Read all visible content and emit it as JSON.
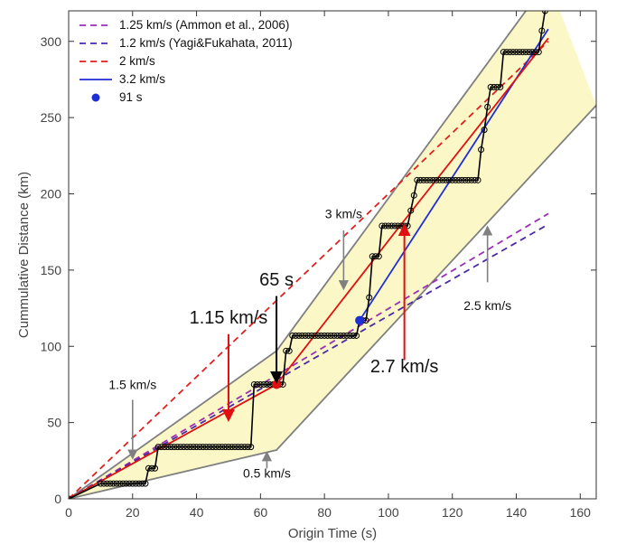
{
  "chart_data": {
    "type": "line",
    "title": "",
    "xlabel": "Origin Time (s)",
    "ylabel": "Cummulative Distance (km)",
    "xlim": [
      0,
      165
    ],
    "ylim": [
      0,
      320
    ],
    "xticks": [
      0,
      20,
      40,
      60,
      80,
      100,
      120,
      140,
      160
    ],
    "yticks": [
      0,
      50,
      100,
      150,
      200,
      250,
      300
    ],
    "grid": false,
    "legend_position": "top-left",
    "shaded_band": {
      "fill": "#fbf7c6",
      "edge": "#808080",
      "upper": [
        [
          0,
          0
        ],
        [
          65,
          97
        ],
        [
          150,
          340
        ]
      ],
      "lower": [
        [
          0,
          0
        ],
        [
          65,
          32
        ],
        [
          165,
          258
        ]
      ]
    },
    "series": [
      {
        "name": "1.25 km/s (Ammon et al., 2006)",
        "style": "dashed",
        "color": "#9a2fb4",
        "x": [
          0,
          150
        ],
        "y": [
          0,
          187
        ]
      },
      {
        "name": "1.2 km/s (Yagi&Fukahata, 2011)",
        "style": "dashed",
        "color": "#4a2aa6",
        "x": [
          0,
          150
        ],
        "y": [
          0,
          180
        ]
      },
      {
        "name": "2 km/s",
        "style": "dashed",
        "color": "#e02020",
        "x": [
          0,
          150
        ],
        "y": [
          0,
          300
        ]
      },
      {
        "name": "3.2 km/s",
        "style": "solid",
        "color": "#1f2fd6",
        "x": [
          91,
          150
        ],
        "y": [
          117,
          308
        ]
      },
      {
        "name": "",
        "style": "solid",
        "color": "#e01010",
        "x": [
          0,
          65,
          104,
          150
        ],
        "y": [
          0,
          75,
          180,
          302
        ]
      },
      {
        "name": "",
        "style": "step-markers",
        "color": "#000000",
        "x": [
          0,
          10,
          11,
          12,
          13,
          14,
          15,
          16,
          17,
          18,
          19,
          20,
          21,
          22,
          23,
          24,
          25,
          26,
          27,
          28,
          29,
          30,
          31,
          32,
          33,
          34,
          35,
          36,
          37,
          38,
          39,
          40,
          41,
          42,
          43,
          44,
          45,
          46,
          47,
          48,
          49,
          50,
          51,
          52,
          53,
          54,
          55,
          56,
          57,
          58,
          59,
          60,
          61,
          62,
          63,
          64,
          65,
          66,
          67,
          68,
          69,
          70,
          71,
          72,
          73,
          74,
          75,
          76,
          77,
          78,
          79,
          80,
          81,
          82,
          83,
          84,
          85,
          86,
          87,
          88,
          89,
          90,
          91,
          92,
          93,
          94,
          95,
          96,
          97,
          98,
          99,
          100,
          101,
          102,
          103,
          104,
          105,
          106,
          107,
          108,
          109,
          110,
          111,
          112,
          113,
          114,
          115,
          116,
          117,
          118,
          119,
          120,
          121,
          122,
          123,
          124,
          125,
          126,
          127,
          128,
          129,
          130,
          131,
          132,
          133,
          134,
          135,
          136,
          137,
          138,
          139,
          140,
          141,
          142,
          143,
          144,
          145,
          146,
          147,
          148,
          149
        ],
        "y": [
          0,
          10,
          10,
          10,
          10,
          10,
          10,
          10,
          10,
          10,
          10,
          10,
          10,
          10,
          10,
          10,
          20,
          20,
          20,
          34,
          34,
          34,
          34,
          34,
          34,
          34,
          34,
          34,
          34,
          34,
          34,
          34,
          34,
          34,
          34,
          34,
          34,
          34,
          34,
          34,
          34,
          34,
          34,
          34,
          34,
          34,
          34,
          34,
          34,
          75,
          75,
          75,
          75,
          75,
          75,
          75,
          75,
          75,
          75,
          97,
          97,
          107,
          107,
          107,
          107,
          107,
          107,
          107,
          107,
          107,
          107,
          107,
          107,
          107,
          107,
          107,
          107,
          107,
          107,
          107,
          107,
          107,
          117,
          117,
          117,
          132,
          159,
          159,
          159,
          179,
          179,
          179,
          179,
          179,
          179,
          179,
          179,
          179,
          189,
          199,
          209,
          209,
          209,
          209,
          209,
          209,
          209,
          209,
          209,
          209,
          209,
          209,
          209,
          209,
          209,
          209,
          209,
          209,
          209,
          209,
          229,
          242,
          257,
          270,
          270,
          270,
          270,
          293,
          293,
          293,
          293,
          293,
          293,
          293,
          293,
          293,
          293,
          293,
          293,
          307,
          320
        ]
      }
    ],
    "points": [
      {
        "name": "91 s",
        "x": 91,
        "y": 117,
        "color": "#1f2fd6",
        "in_legend": true
      },
      {
        "name": "",
        "x": 65,
        "y": 75,
        "color": "#e01010",
        "in_legend": false
      }
    ],
    "annotations": [
      {
        "text": "65 s",
        "size": 20,
        "tx": 65,
        "ty": 140,
        "arrow_from": [
          65,
          133
        ],
        "arrow_to": [
          65,
          77
        ],
        "color": "#000000"
      },
      {
        "text": "1.15 km/s",
        "size": 20,
        "tx": 50,
        "ty": 115,
        "arrow_from": [
          50,
          108
        ],
        "arrow_to": [
          50,
          52
        ],
        "color": "#e01010"
      },
      {
        "text": "2.7 km/s",
        "size": 20,
        "tx": 105,
        "ty": 83,
        "arrow_from": [
          105,
          91
        ],
        "arrow_to": [
          105,
          179
        ],
        "color": "#e01010"
      },
      {
        "text": "1.5 km/s",
        "size": 14,
        "tx": 20,
        "ty": 72,
        "arrow_from": [
          20,
          65
        ],
        "arrow_to": [
          20,
          27
        ],
        "color": "#808080"
      },
      {
        "text": "3 km/s",
        "size": 14,
        "tx": 86,
        "ty": 184,
        "arrow_from": [
          86,
          176
        ],
        "arrow_to": [
          86,
          138
        ],
        "color": "#808080"
      },
      {
        "text": "2.5 km/s",
        "size": 14,
        "tx": 131,
        "ty": 124,
        "arrow_from": [
          131,
          142
        ],
        "arrow_to": [
          131,
          178
        ],
        "color": "#808080"
      },
      {
        "text": "0.5 km/s",
        "size": 14,
        "tx": 62,
        "ty": 14,
        "arrow_from": [
          62,
          20
        ],
        "arrow_to": [
          62,
          30
        ],
        "color": "#808080"
      }
    ]
  }
}
